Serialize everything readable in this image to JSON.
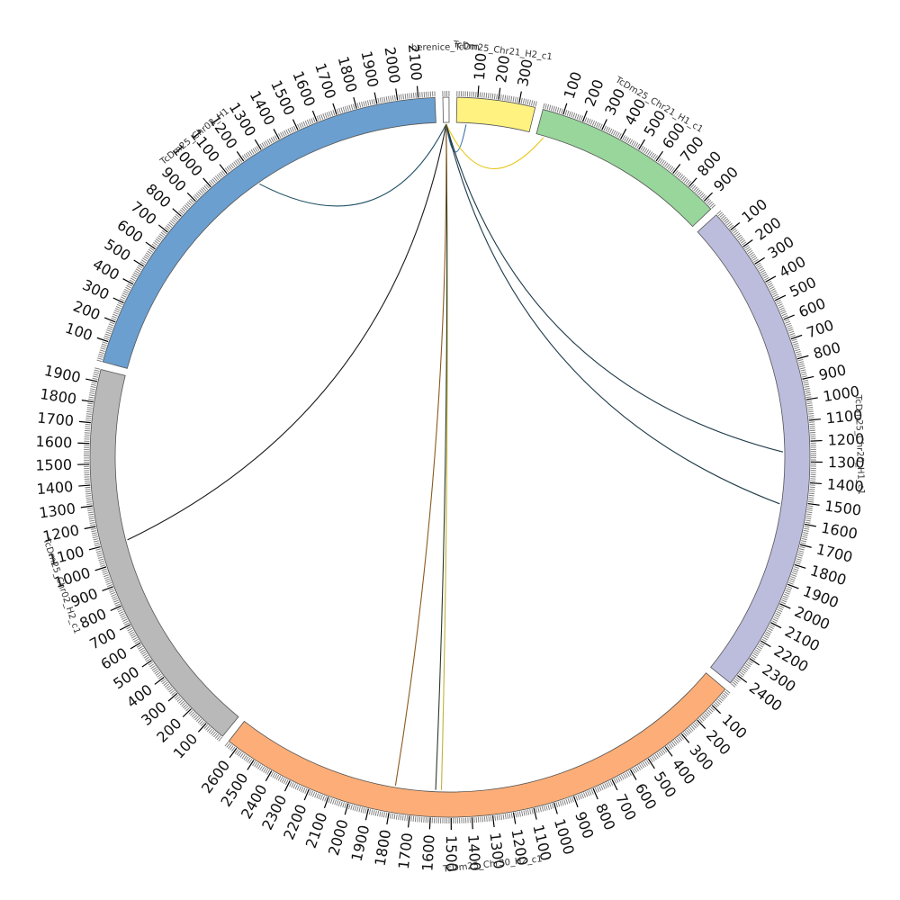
{
  "chart_data": {
    "type": "chord",
    "tick_interval": 100,
    "segments": [
      {
        "name": "berenice_TcDm",
        "length": 30,
        "color": "#ffffff",
        "label_visible": true
      },
      {
        "name": "TcDm25_Chr21_H2_c1",
        "length": 380,
        "color": "#fff280",
        "label_visible": true
      },
      {
        "name": "TcDm25_Chr21_H1_c1",
        "length": 950,
        "color": "#98d69b",
        "label_visible": true
      },
      {
        "name": "TcDm25_Chr20_H1_c1",
        "length": 2450,
        "color": "#bcbcdd",
        "label_visible": true
      },
      {
        "name": "TcDm25_Chr30_H2_c1",
        "length": 2650,
        "color": "#fdae78",
        "label_visible": true
      },
      {
        "name": "TcDm25_Chr02_H2_c1",
        "length": 1960,
        "color": "#b9b9b9",
        "label_visible": true
      },
      {
        "name": "TcDm25_Chr02_H1",
        "length": 2180,
        "color": "#6a9fd0",
        "label_visible": true
      }
    ],
    "links": [
      {
        "from": "berenice_TcDm",
        "from_pos": 15,
        "to": "TcDm25_Chr02_H1",
        "to_pos": 1200,
        "color": "#1d4e63"
      },
      {
        "from": "berenice_TcDm",
        "from_pos": 15,
        "to": "TcDm25_Chr02_H2_c1",
        "to_pos": 1100,
        "color": "#1a1a1a"
      },
      {
        "from": "berenice_TcDm",
        "from_pos": 15,
        "to": "TcDm25_Chr21_H2_c1",
        "to_pos": 50,
        "color": "#3c6fa8"
      },
      {
        "from": "berenice_TcDm",
        "from_pos": 15,
        "to": "TcDm25_Chr21_H1_c1",
        "to_pos": 40,
        "color": "#e6c619"
      },
      {
        "from": "berenice_TcDm",
        "from_pos": 15,
        "to": "TcDm25_Chr20_H1_c1",
        "to_pos": 1250,
        "color": "#1e3b4a"
      },
      {
        "from": "berenice_TcDm",
        "from_pos": 15,
        "to": "TcDm25_Chr20_H1_c1",
        "to_pos": 1520,
        "color": "#1e3b4a"
      },
      {
        "from": "berenice_TcDm",
        "from_pos": 15,
        "to": "TcDm25_Chr30_H2_c1",
        "to_pos": 1550,
        "color": "#c2b13a"
      },
      {
        "from": "berenice_TcDm",
        "from_pos": 15,
        "to": "TcDm25_Chr30_H2_c1",
        "to_pos": 1580,
        "color": "#2a3b2a"
      },
      {
        "from": "berenice_TcDm",
        "from_pos": 15,
        "to": "TcDm25_Chr30_H2_c1",
        "to_pos": 1790,
        "color": "#8a5a1e"
      }
    ]
  }
}
